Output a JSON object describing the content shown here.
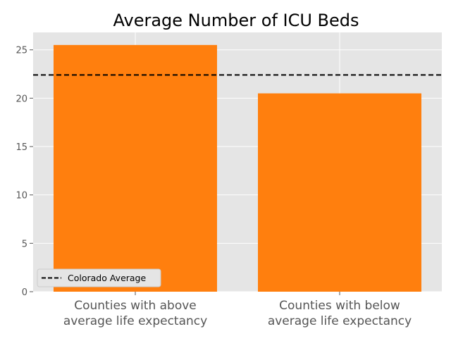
{
  "chart_data": {
    "type": "bar",
    "title": "Average Number of ICU Beds",
    "xlabel": "",
    "ylabel": "",
    "categories": [
      [
        "Counties with above",
        "average life expectancy"
      ],
      [
        "Counties with below",
        "average life expectancy"
      ]
    ],
    "values": [
      25.5,
      20.5
    ],
    "ylim": [
      0,
      26.8
    ],
    "yticks": [
      "0",
      "5",
      "10",
      "15",
      "20",
      "25"
    ],
    "reference_line": {
      "label": "Colorado Average",
      "value": 22.4,
      "style": "dashed",
      "color": "#000000"
    },
    "legend": {
      "position": "bottom-left",
      "entries": [
        "Colorado Average"
      ]
    },
    "grid": true,
    "colors": {
      "bar": "#ff7f0e",
      "plot_background": "#e5e5e5",
      "grid": "#ffffff",
      "tick_label": "#555555",
      "title": "#000000"
    }
  }
}
